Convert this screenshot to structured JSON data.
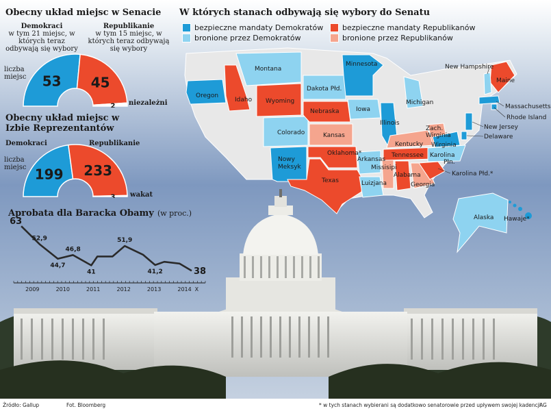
{
  "colors": {
    "safe_dem": "#1E9BD7",
    "lean_dem": "#8ED3F0",
    "safe_rep": "#EC4A2C",
    "lean_rep": "#F5A58E",
    "neutral_state": "#E8E8E8",
    "sky_top": "#6C8AB5",
    "sky_bottom": "#E6EDF4"
  },
  "senate": {
    "title": "Obecny układ miejsc w Senacie",
    "dem_label": "Demokraci",
    "dem_note": "w tym 21 miejsc, w których teraz odbywają się wybory",
    "rep_label": "Republikanie",
    "rep_note": "w tym 15 miejsc, w których teraz odbywają się wybory",
    "seats_label": "liczba miejsc",
    "independents_label": "niezależni"
  },
  "house": {
    "title": "Obecny układ miejsc w Izbie Reprezentantów",
    "dem_label": "Demokraci",
    "rep_label": "Republikanie",
    "seats_label": "liczba miejsc",
    "vacancy_label": "wakat"
  },
  "approval": {
    "title": "Aprobata dla Baracka Obamy",
    "unit": "(w proc.)",
    "x_ticks": [
      "2009",
      "2010",
      "2011",
      "2012",
      "2013",
      "2014",
      "X"
    ]
  },
  "map": {
    "title": "W których stanach odbywają się wybory do Senatu",
    "legend": {
      "safe_dem": "bezpieczne mandaty Demokratów",
      "lean_dem": "bronione przez Demokratów",
      "safe_rep": "bezpieczne mandaty Republikanów",
      "lean_rep": "bronione przez Republikanów"
    },
    "states": {
      "oregon": "Oregon",
      "idaho": "Idaho",
      "montana": "Montana",
      "wyoming": "Wyoming",
      "colorado": "Colorado",
      "new_mexico": "Nowy Meksyk",
      "south_dakota": "Dakota Płd.",
      "nebraska": "Nebraska",
      "kansas": "Kansas",
      "oklahoma": "Oklahoma*",
      "texas": "Texas",
      "minnesota": "Minnesota",
      "iowa": "Iowa",
      "arkansas": "Arkansas",
      "louisiana": "Luizjana",
      "illinois": "Illinois",
      "michigan": "Michigan",
      "kentucky": "Kentucky",
      "tennessee": "Tennessee",
      "mississippi": "Missisipi",
      "alabama": "Alabama",
      "georgia": "Georgia",
      "west_virginia": "Zach. Wirginia",
      "virginia": "Wirginia",
      "north_carolina": "Karolina Płn.",
      "south_carolina": "Karolina Płd.*",
      "new_hampshire": "New Hampshire",
      "maine": "Maine",
      "massachusetts": "Massachusetts",
      "rhode_island": "Rhode Island",
      "new_jersey": "New Jersey",
      "delaware": "Delaware",
      "alaska": "Alaska",
      "hawaii": "Hawaje*"
    }
  },
  "footer": {
    "source": "Źródło: Gallup",
    "photo": "Fot. Bloomberg",
    "footnote": "* w tych stanach wybierani są dodatkowo senatorowie przed upływem swojej kadencji",
    "credit": "AG"
  },
  "chart_data": [
    {
      "type": "pie",
      "subtype": "semicircle-parliament",
      "title": "Obecny układ miejsc w Senacie",
      "categories": [
        "Demokraci",
        "Republikanie",
        "niezależni"
      ],
      "values": [
        53,
        45,
        2
      ],
      "colors": [
        "#1E9BD7",
        "#EC4A2C",
        "#FFFFFF"
      ]
    },
    {
      "type": "pie",
      "subtype": "semicircle-parliament",
      "title": "Obecny układ miejsc w Izbie Reprezentantów",
      "categories": [
        "Demokraci",
        "Republikanie",
        "wakat"
      ],
      "values": [
        199,
        233,
        3
      ],
      "colors": [
        "#1E9BD7",
        "#EC4A2C",
        "#FFFFFF"
      ]
    },
    {
      "type": "line",
      "title": "Aprobata dla Baracka Obamy",
      "ylabel": "(w proc.)",
      "x_ticks": [
        "2009",
        "2010",
        "2011",
        "2012",
        "2013",
        "2014",
        "X"
      ],
      "x": [
        2009.0,
        2009.6,
        2010.2,
        2010.7,
        2011.3,
        2011.5,
        2012.0,
        2012.4,
        2013.0,
        2013.4,
        2013.7,
        2014.2,
        2014.6
      ],
      "y": [
        63,
        52.9,
        44.7,
        46.8,
        41,
        46,
        46,
        51.9,
        47,
        41.2,
        43,
        42,
        38
      ],
      "labeled_points": [
        {
          "x": 2009.0,
          "label": "63"
        },
        {
          "x": 2009.6,
          "label": "52,9"
        },
        {
          "x": 2010.2,
          "label": "44,7"
        },
        {
          "x": 2010.7,
          "label": "46,8"
        },
        {
          "x": 2011.3,
          "label": "41"
        },
        {
          "x": 2012.4,
          "label": "51,9"
        },
        {
          "x": 2013.4,
          "label": "41,2"
        },
        {
          "x": 2014.6,
          "label": "38"
        }
      ],
      "xlim": [
        2008.75,
        2015.05
      ],
      "ylim": [
        35,
        65
      ]
    }
  ]
}
